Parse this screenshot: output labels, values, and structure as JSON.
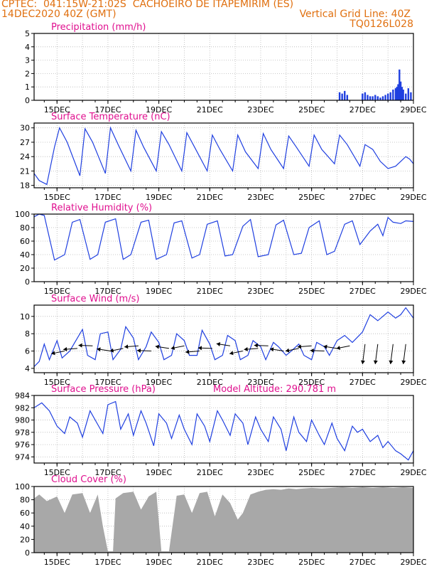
{
  "header": {
    "station": "CPTEC:  041:15W-21:02S  CACHOEIRO DE ITAPEMIRIM (ES)",
    "init_time": "14DEC2020 40Z (GMT)",
    "grid_note": "Vertical Grid Line: 40Z",
    "model": "TQ0126L028",
    "model_altitude": "Model Altitude: 290.781 m"
  },
  "colors": {
    "header_text": "#e07010",
    "panel_title": "#e0108f",
    "series_line": "#1f3fe0",
    "cloud_fill": "#a8a8a8",
    "wind_arrow": "#000000",
    "grid": "#b8b8b8"
  },
  "x_axis": {
    "ticks": [
      "15DEC",
      "17DEC",
      "19DEC",
      "21DEC",
      "23DEC",
      "25DEC",
      "27DEC",
      "29DEC"
    ],
    "tick_day_offsets": [
      1,
      3,
      5,
      7,
      9,
      11,
      13,
      15
    ],
    "day_range": [
      0.1,
      15
    ],
    "minor_step_days": 0.5
  },
  "chart_data": [
    {
      "type": "bar",
      "title": "Precipitation (mm/h)",
      "ylim": [
        0,
        5
      ],
      "yticks": [
        "0",
        "1",
        "2",
        "3",
        "4",
        "5"
      ],
      "series": [
        {
          "x": [
            12.1,
            12.2,
            12.3,
            12.4,
            13.0,
            13.1,
            13.2,
            13.3,
            13.4,
            13.5,
            13.6,
            13.7,
            13.8,
            13.9,
            14.0,
            14.1,
            14.2,
            14.3,
            14.35,
            14.4,
            14.45,
            14.5,
            14.55,
            14.6,
            14.7,
            14.8,
            14.9
          ],
          "values": [
            0.6,
            0.5,
            0.7,
            0.4,
            0.5,
            0.6,
            0.4,
            0.3,
            0.3,
            0.4,
            0.3,
            0.2,
            0.3,
            0.4,
            0.5,
            0.6,
            0.8,
            0.9,
            1.0,
            1.2,
            2.3,
            1.4,
            1.0,
            0.8,
            0.5,
            0.9,
            0.6
          ]
        }
      ]
    },
    {
      "type": "line",
      "title": "Surface Temperature (nC)",
      "ylim": [
        17.5,
        31
      ],
      "yticks": [
        "18",
        "21",
        "24",
        "27",
        "30"
      ],
      "series": [
        {
          "x": [
            0.1,
            0.3,
            0.6,
            0.9,
            1.1,
            1.4,
            1.9,
            2.1,
            2.4,
            2.9,
            3.1,
            3.4,
            3.9,
            4.1,
            4.4,
            4.9,
            5.1,
            5.4,
            5.9,
            6.1,
            6.4,
            6.9,
            7.1,
            7.4,
            7.9,
            8.1,
            8.4,
            8.9,
            9.1,
            9.4,
            9.9,
            10.1,
            10.4,
            10.9,
            11.1,
            11.4,
            11.9,
            12.1,
            12.4,
            12.9,
            13.1,
            13.4,
            13.7,
            14.0,
            14.3,
            14.5,
            14.7,
            14.85,
            15.0
          ],
          "values": [
            20.5,
            19.0,
            18.2,
            26,
            30,
            27,
            20,
            29.8,
            27,
            20.5,
            30,
            26.5,
            21,
            29.5,
            26,
            21,
            29.2,
            26.5,
            21,
            29,
            26,
            21,
            28.5,
            25.5,
            21,
            28.5,
            25,
            21.5,
            28.8,
            25.5,
            21.5,
            28.3,
            26,
            22,
            28.5,
            25.5,
            22.5,
            28.5,
            26.5,
            22,
            26.5,
            25.5,
            23,
            21.5,
            22,
            23,
            24,
            23.5,
            22.5
          ]
        }
      ]
    },
    {
      "type": "line",
      "title": "Relative Humidity (%)",
      "ylim": [
        0,
        100
      ],
      "yticks": [
        "0",
        "20",
        "40",
        "60",
        "80",
        "100"
      ],
      "series": [
        {
          "x": [
            0.1,
            0.3,
            0.5,
            0.9,
            1.3,
            1.6,
            1.9,
            2.3,
            2.6,
            2.9,
            3.3,
            3.6,
            3.9,
            4.3,
            4.6,
            4.9,
            5.3,
            5.6,
            5.9,
            6.3,
            6.6,
            6.9,
            7.3,
            7.6,
            7.9,
            8.3,
            8.6,
            8.9,
            9.3,
            9.6,
            9.9,
            10.3,
            10.6,
            10.9,
            11.3,
            11.6,
            11.9,
            12.3,
            12.6,
            12.9,
            13.3,
            13.6,
            13.8,
            14.0,
            14.2,
            14.5,
            14.7,
            15.0
          ],
          "values": [
            96,
            100,
            98,
            32,
            40,
            88,
            92,
            33,
            40,
            88,
            93,
            33,
            40,
            88,
            91,
            33,
            40,
            87,
            90,
            35,
            40,
            85,
            90,
            38,
            40,
            82,
            92,
            37,
            40,
            84,
            91,
            40,
            42,
            80,
            90,
            40,
            45,
            85,
            90,
            55,
            75,
            85,
            68,
            95,
            88,
            86,
            90,
            89
          ]
        }
      ]
    },
    {
      "type": "line",
      "title": "Surface Wind (m/s)",
      "ylim": [
        3.5,
        11.3
      ],
      "yticks": [
        "4",
        "6",
        "8",
        "10"
      ],
      "series": [
        {
          "x": [
            0.1,
            0.3,
            0.5,
            0.7,
            1.0,
            1.2,
            1.5,
            1.7,
            2.0,
            2.2,
            2.5,
            2.7,
            3.0,
            3.2,
            3.5,
            3.7,
            4.0,
            4.2,
            4.5,
            4.7,
            5.0,
            5.2,
            5.5,
            5.7,
            6.0,
            6.2,
            6.5,
            6.7,
            7.0,
            7.2,
            7.5,
            7.7,
            8.0,
            8.2,
            8.5,
            8.7,
            9.0,
            9.2,
            9.5,
            9.7,
            10.0,
            10.2,
            10.5,
            10.7,
            11.0,
            11.2,
            11.5,
            11.7,
            12.0,
            12.3,
            12.6,
            13.0,
            13.3,
            13.6,
            14.0,
            14.3,
            14.5,
            14.7,
            15.0
          ],
          "values": [
            4.2,
            4.8,
            6.8,
            5.0,
            7.2,
            5.2,
            6.0,
            7.0,
            8.5,
            5.5,
            5.0,
            8.0,
            8.2,
            5.0,
            6.2,
            8.8,
            7.5,
            5.0,
            6.5,
            8.2,
            7.0,
            5.0,
            5.5,
            8.0,
            7.2,
            5.5,
            5.5,
            8.4,
            6.8,
            5.0,
            5.5,
            7.8,
            7.2,
            5.0,
            5.5,
            7.2,
            6.5,
            5.0,
            7.0,
            6.5,
            5.5,
            6.0,
            6.8,
            5.5,
            5.0,
            7.0,
            6.5,
            5.5,
            7.2,
            7.8,
            7.0,
            8.2,
            10.2,
            9.5,
            10.5,
            9.8,
            10.2,
            11.0,
            9.8
          ]
        }
      ],
      "arrows": [
        1.3,
        1.8,
        2.4,
        3.1,
        3.6,
        4.2,
        4.7,
        5.4,
        6.0,
        6.6,
        7.1,
        7.8,
        8.3,
        8.9,
        9.3,
        9.9,
        10.5,
        11.0,
        11.5,
        12.0,
        12.5,
        13.1,
        13.6,
        14.2,
        14.7
      ]
    },
    {
      "type": "line",
      "title": "Surface Pressure (hPa)",
      "ylim": [
        973,
        984
      ],
      "yticks": [
        "974",
        "976",
        "978",
        "980",
        "982",
        "984"
      ],
      "series": [
        {
          "x": [
            0.1,
            0.4,
            0.7,
            1.0,
            1.3,
            1.5,
            1.8,
            2.0,
            2.3,
            2.5,
            2.8,
            3.0,
            3.3,
            3.5,
            3.8,
            4.0,
            4.3,
            4.5,
            4.8,
            5.0,
            5.3,
            5.5,
            5.8,
            6.0,
            6.3,
            6.5,
            6.8,
            7.0,
            7.3,
            7.5,
            7.8,
            8.0,
            8.3,
            8.5,
            8.8,
            9.0,
            9.3,
            9.5,
            9.8,
            10.0,
            10.3,
            10.5,
            10.8,
            11.0,
            11.3,
            11.5,
            11.8,
            12.0,
            12.3,
            12.6,
            12.8,
            13.0,
            13.3,
            13.6,
            13.8,
            14.0,
            14.3,
            14.5,
            14.8,
            15.0
          ],
          "values": [
            982,
            982.8,
            981.5,
            979,
            977.8,
            980.5,
            979.5,
            977.2,
            981.5,
            980,
            977.8,
            982.5,
            983,
            978.5,
            981,
            977.5,
            981.5,
            979.5,
            975.8,
            981,
            979.5,
            977,
            980.8,
            978.5,
            976,
            981,
            979,
            976.5,
            981.5,
            980,
            977.5,
            981,
            979.5,
            976,
            980.5,
            978.5,
            976.5,
            980.5,
            978.5,
            975,
            980.5,
            978,
            976.5,
            980,
            977.5,
            976,
            979.5,
            977,
            975,
            979,
            978,
            978.5,
            976.5,
            977.5,
            975.5,
            976.5,
            975,
            974.5,
            973.5,
            975
          ]
        }
      ]
    },
    {
      "type": "area",
      "title": "Cloud Cover (%)",
      "ylim": [
        0,
        100
      ],
      "yticks": [
        "0",
        "20",
        "40",
        "60",
        "80",
        "100"
      ],
      "series": [
        {
          "x": [
            0.1,
            0.3,
            0.6,
            1.0,
            1.3,
            1.6,
            2.0,
            2.3,
            2.6,
            2.8,
            3.0,
            3.2,
            3.3,
            3.6,
            4.0,
            4.3,
            4.6,
            4.9,
            5.1,
            5.4,
            5.7,
            6.0,
            6.3,
            6.6,
            6.9,
            7.2,
            7.5,
            7.8,
            8.1,
            8.3,
            8.6,
            8.9,
            9.2,
            9.5,
            9.8,
            10.1,
            10.4,
            10.7,
            11.0,
            11.4,
            11.8,
            12.2,
            12.6,
            13.0,
            13.4,
            13.8,
            14.2,
            14.6,
            15.0
          ],
          "values": [
            82,
            88,
            78,
            85,
            60,
            88,
            90,
            60,
            88,
            40,
            2,
            2,
            82,
            90,
            92,
            65,
            85,
            92,
            2,
            2,
            86,
            88,
            60,
            90,
            92,
            55,
            88,
            75,
            50,
            60,
            88,
            92,
            95,
            96,
            95,
            97,
            96,
            97,
            98,
            97,
            98,
            99,
            98,
            99,
            98,
            99,
            98,
            99,
            98
          ]
        }
      ]
    }
  ]
}
